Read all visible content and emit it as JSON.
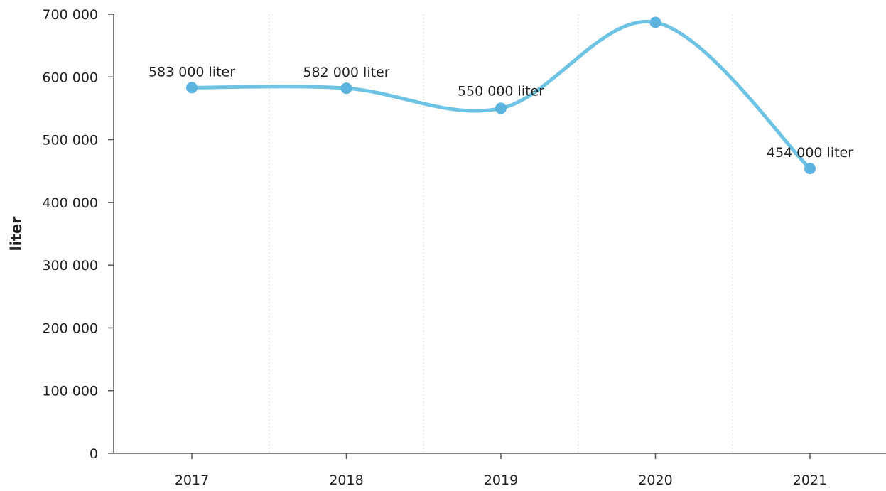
{
  "chart_data": {
    "type": "line",
    "title": "",
    "xlabel": "",
    "ylabel": "liter",
    "categories": [
      "2017",
      "2018",
      "2019",
      "2020",
      "2021"
    ],
    "series": [
      {
        "values": [
          583000,
          582000,
          550000,
          687000,
          454000
        ],
        "data_labels": [
          "583 000 liter",
          "582 000 liter",
          "550 000 liter",
          "",
          "454 000 liter"
        ],
        "color": "#6cc3e3",
        "marker_color": "#5bb3de",
        "smooth": true
      }
    ],
    "ylim": [
      0,
      700000
    ],
    "yticks": [
      0,
      100000,
      200000,
      300000,
      400000,
      500000,
      600000,
      700000
    ],
    "ytick_labels": [
      "0",
      "100 000",
      "200 000",
      "300 000",
      "400 000",
      "500 000",
      "600 000",
      "700 000"
    ],
    "grid": "vertical-category-dividers",
    "legend": "none"
  }
}
